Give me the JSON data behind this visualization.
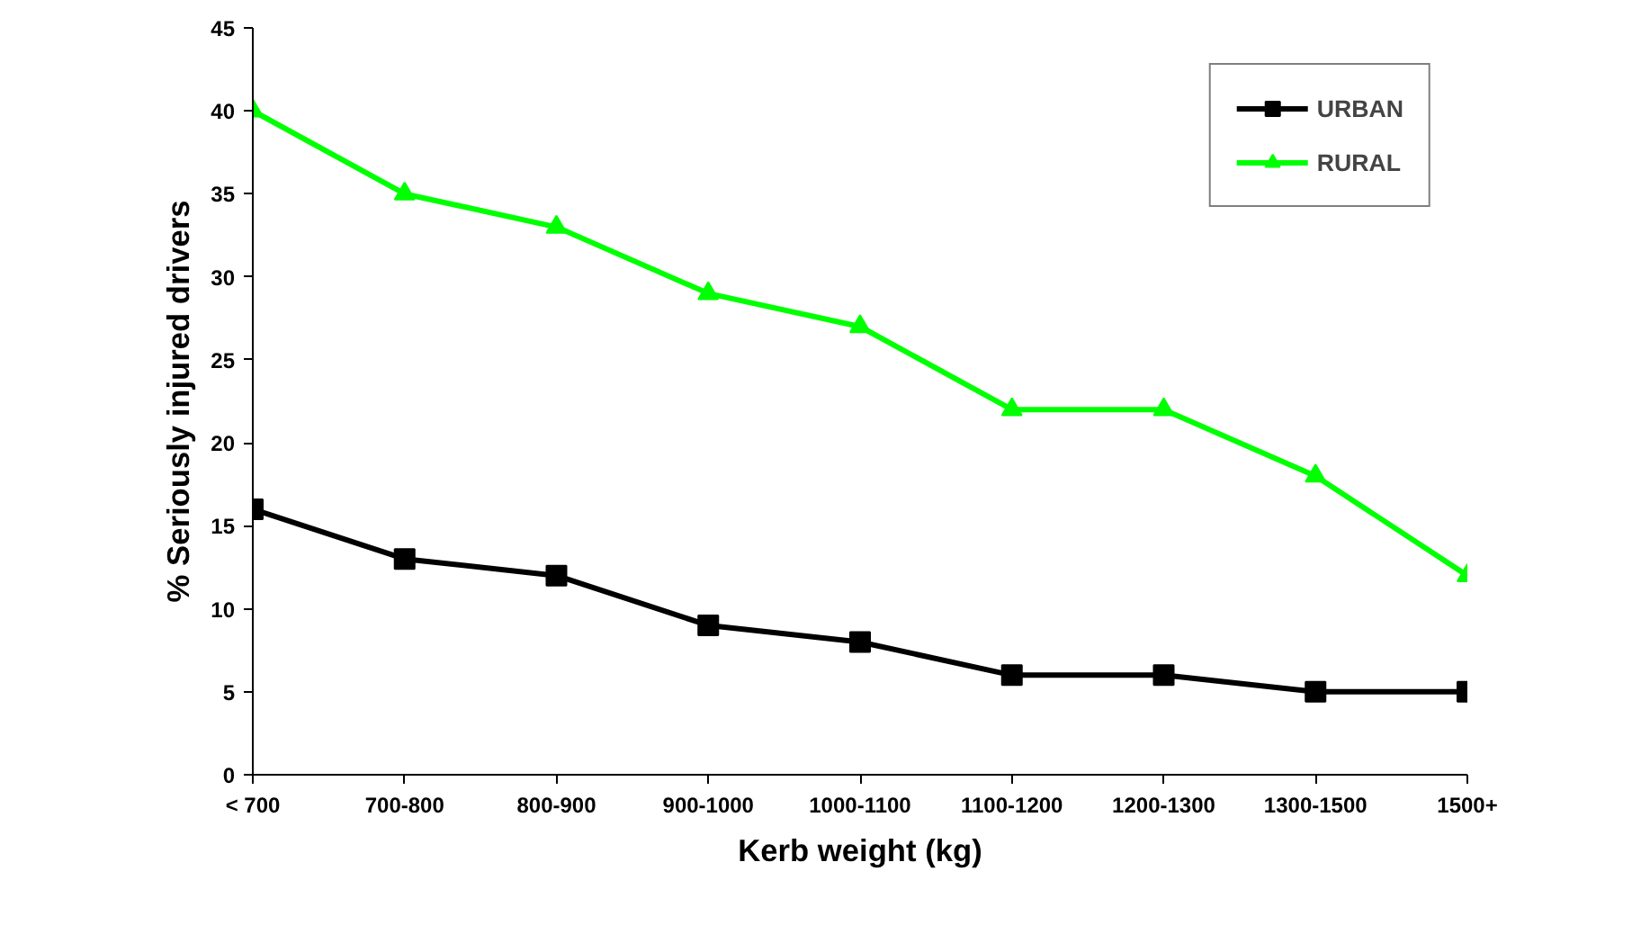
{
  "chart_data": {
    "type": "line",
    "xlabel": "Kerb weight (kg)",
    "ylabel": "% Seriously injured drivers",
    "categories": [
      "< 700",
      "700-800",
      "800-900",
      "900-1000",
      "1000-1100",
      "1100-1200",
      "1200-1300",
      "1300-1500",
      "1500+"
    ],
    "series": [
      {
        "name": "URBAN",
        "color": "#000000",
        "marker": "square",
        "values": [
          16,
          13,
          12,
          9,
          8,
          6,
          6,
          5,
          5
        ]
      },
      {
        "name": "RURAL",
        "color": "#00ff00",
        "marker": "triangle",
        "values": [
          40,
          35,
          33,
          29,
          27,
          22,
          22,
          18,
          12
        ]
      }
    ],
    "ylim": [
      0,
      45
    ],
    "yticks": [
      0,
      5,
      10,
      15,
      20,
      25,
      30,
      35,
      40,
      45
    ],
    "grid": false,
    "legend": "top right",
    "line_style": "solid"
  }
}
